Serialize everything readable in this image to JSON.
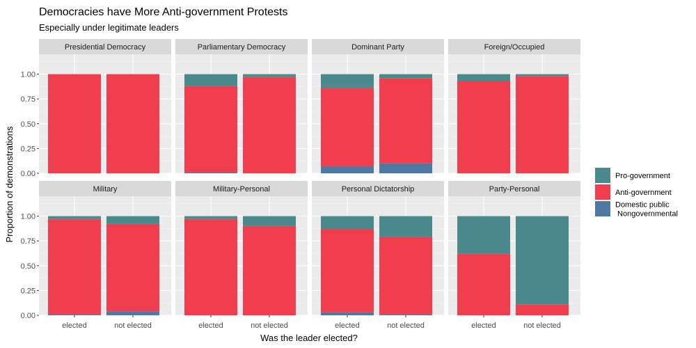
{
  "chart_data": {
    "type": "bar",
    "stacked": true,
    "title": "Democracies have More Anti-government Protests",
    "subtitle": "Especially under legitimate leaders",
    "xlabel": "Was the leader elected?",
    "ylabel": "Proportion of demonstrations",
    "ylim": [
      0,
      1.2
    ],
    "yticks": [
      "0.00",
      "0.25",
      "0.50",
      "0.75",
      "1.00"
    ],
    "categories": [
      "elected",
      "not elected"
    ],
    "legend": {
      "placement": "right",
      "entries": [
        "Pro-government",
        "Anti-government",
        "Domestic public\n Nongovernmental"
      ]
    },
    "colors": {
      "pro": "#4A8A8C",
      "anti": "#F03E4E",
      "domestic": "#4E79A2",
      "panel_bg": "#EBEBEB",
      "strip_bg": "#D9D9D9",
      "grid_major": "#FFFFFF"
    },
    "series_order": [
      "domestic",
      "anti",
      "pro"
    ],
    "facets": [
      {
        "label": "Presidential Democracy",
        "bars": [
          {
            "category": "elected",
            "domestic": 0.0,
            "anti": 1.0,
            "pro": 0.0
          },
          {
            "category": "not elected",
            "domestic": 0.0,
            "anti": 1.0,
            "pro": 0.0
          }
        ]
      },
      {
        "label": "Parliamentary Democracy",
        "bars": [
          {
            "category": "elected",
            "domestic": 0.01,
            "anti": 0.87,
            "pro": 0.12
          },
          {
            "category": "not elected",
            "domestic": 0.0,
            "anti": 0.97,
            "pro": 0.03
          }
        ]
      },
      {
        "label": "Dominant Party",
        "bars": [
          {
            "category": "elected",
            "domestic": 0.07,
            "anti": 0.79,
            "pro": 0.14
          },
          {
            "category": "not elected",
            "domestic": 0.1,
            "anti": 0.86,
            "pro": 0.04
          }
        ]
      },
      {
        "label": "Foreign/Occupied",
        "bars": [
          {
            "category": "elected",
            "domestic": 0.0,
            "anti": 0.93,
            "pro": 0.07
          },
          {
            "category": "not elected",
            "domestic": 0.0,
            "anti": 0.98,
            "pro": 0.02
          }
        ]
      },
      {
        "label": "Military",
        "bars": [
          {
            "category": "elected",
            "domestic": 0.01,
            "anti": 0.96,
            "pro": 0.03
          },
          {
            "category": "not elected",
            "domestic": 0.04,
            "anti": 0.88,
            "pro": 0.08
          }
        ]
      },
      {
        "label": "Military-Personal",
        "bars": [
          {
            "category": "elected",
            "domestic": 0.0,
            "anti": 0.97,
            "pro": 0.03
          },
          {
            "category": "not elected",
            "domestic": 0.0,
            "anti": 0.9,
            "pro": 0.1
          }
        ]
      },
      {
        "label": "Personal Dictatorship",
        "bars": [
          {
            "category": "elected",
            "domestic": 0.03,
            "anti": 0.84,
            "pro": 0.13
          },
          {
            "category": "not elected",
            "domestic": 0.01,
            "anti": 0.78,
            "pro": 0.21
          }
        ]
      },
      {
        "label": "Party-Personal",
        "bars": [
          {
            "category": "elected",
            "domestic": 0.0,
            "anti": 0.62,
            "pro": 0.38
          },
          {
            "category": "not elected",
            "domestic": 0.0,
            "anti": 0.11,
            "pro": 0.89
          }
        ]
      }
    ]
  }
}
